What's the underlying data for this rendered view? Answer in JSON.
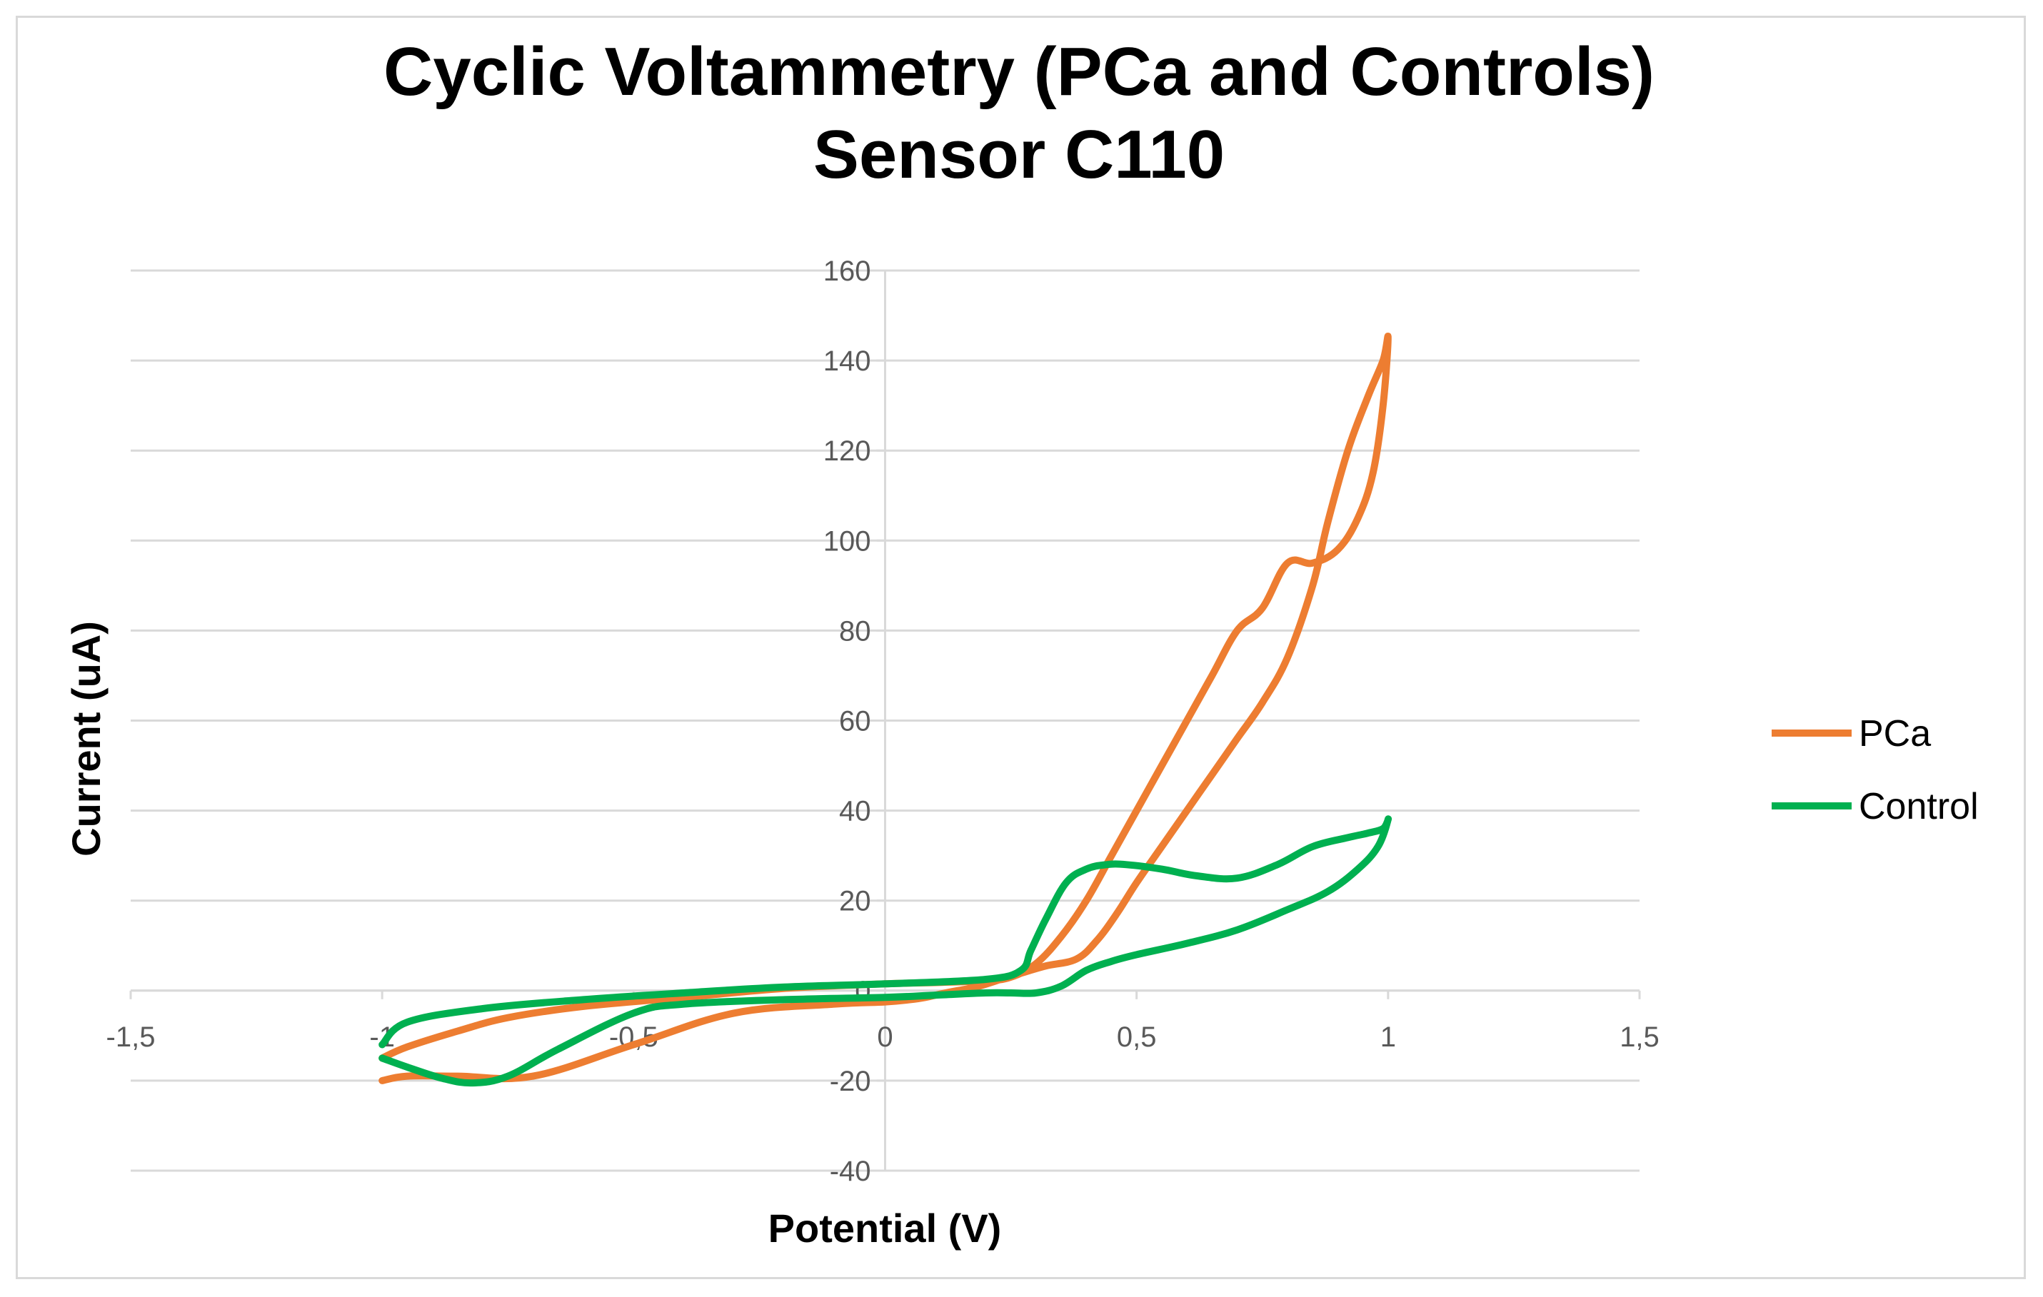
{
  "chart_data": {
    "type": "line",
    "title_line1": "Cyclic Voltammetry  (PCa and Controls)",
    "title_line2": "Sensor C110",
    "xlabel": "Potential (V)",
    "ylabel": "Current (uA)",
    "xlim": [
      -1.5,
      1.5
    ],
    "ylim": [
      -40,
      160
    ],
    "x_ticks": [
      -1.5,
      -1,
      -0.5,
      0,
      0.5,
      1,
      1.5
    ],
    "x_tick_labels": [
      "-1,5",
      "-1",
      "-0,5",
      "0",
      "0,5",
      "1",
      "1,5"
    ],
    "y_ticks": [
      -40,
      -20,
      0,
      20,
      40,
      60,
      80,
      100,
      120,
      140,
      160
    ],
    "y_tick_labels": [
      "-40",
      "-20",
      "0",
      "20",
      "40",
      "60",
      "80",
      "100",
      "120",
      "140",
      "160"
    ],
    "grid": true,
    "legend_position": "right",
    "series": [
      {
        "name": "PCa",
        "color": "#ed7d31",
        "x": [
          -1.0,
          -0.95,
          -0.85,
          -0.7,
          -0.5,
          -0.3,
          -0.1,
          0.0,
          0.05,
          0.08,
          0.12,
          0.18,
          0.23,
          0.28,
          0.32,
          0.38,
          0.42,
          0.46,
          0.5,
          0.55,
          0.6,
          0.65,
          0.7,
          0.75,
          0.8,
          0.85,
          0.88,
          0.92,
          0.96,
          0.99,
          1.0,
          0.99,
          0.97,
          0.94,
          0.9,
          0.85,
          0.8,
          0.75,
          0.7,
          0.65,
          0.6,
          0.55,
          0.5,
          0.45,
          0.4,
          0.35,
          0.3,
          0.25,
          0.2,
          0.1,
          0.0,
          -0.2,
          -0.4,
          -0.6,
          -0.75,
          -0.85,
          -0.95,
          -1.0
        ],
        "y": [
          -20,
          -19,
          -19,
          -19,
          -12,
          -5,
          -3,
          -2.5,
          -2,
          -1.5,
          -0.5,
          0.8,
          2.5,
          4.2,
          5.5,
          7,
          11,
          17,
          24,
          32,
          40,
          48,
          56,
          64,
          74,
          90,
          104,
          120,
          132,
          140,
          145,
          130,
          115,
          105,
          98,
          95,
          95,
          85,
          80,
          70,
          60,
          50,
          40,
          30,
          20,
          12,
          6,
          3,
          2.2,
          1.8,
          1.5,
          0.5,
          -1.5,
          -3.5,
          -6,
          -9,
          -12.5,
          -15
        ]
      },
      {
        "name": "Control",
        "color": "#00b050",
        "x": [
          -1.0,
          -0.95,
          -0.88,
          -0.82,
          -0.75,
          -0.65,
          -0.5,
          -0.4,
          -0.2,
          0.0,
          0.1,
          0.2,
          0.25,
          0.3,
          0.35,
          0.4,
          0.45,
          0.5,
          0.6,
          0.7,
          0.8,
          0.88,
          0.94,
          0.98,
          1.0,
          0.99,
          0.96,
          0.92,
          0.85,
          0.78,
          0.7,
          0.62,
          0.55,
          0.48,
          0.44,
          0.4,
          0.36,
          0.32,
          0.29,
          0.27,
          0.2,
          0.0,
          -0.2,
          -0.4,
          -0.6,
          -0.8,
          -0.95,
          -1.0
        ],
        "y": [
          -15,
          -17,
          -19.5,
          -20.5,
          -19,
          -13,
          -5,
          -3,
          -2,
          -1.5,
          -1,
          -0.5,
          -0.5,
          -0.5,
          1,
          4.5,
          6.5,
          8,
          10.5,
          13.5,
          18,
          22,
          27,
          32,
          38,
          36,
          35,
          34,
          32,
          28,
          25,
          25.5,
          27,
          28,
          28,
          27,
          24,
          16,
          9,
          4.5,
          2.5,
          1.5,
          0.8,
          -0.5,
          -2,
          -4,
          -7,
          -12
        ]
      }
    ]
  }
}
